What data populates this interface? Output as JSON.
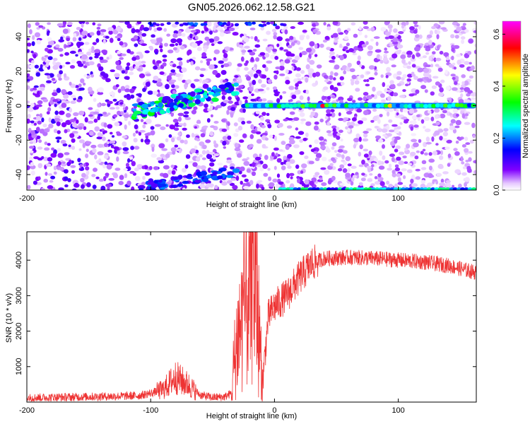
{
  "figure_title": "GN05.2026.062.12.58.G21",
  "chart_data": [
    {
      "type": "heatmap",
      "title": "GN05.2026.062.12.58.G21",
      "xlabel": "Height of straight line (km)",
      "ylabel": "Frequency (Hz)",
      "xlim": [
        -200,
        163
      ],
      "ylim": [
        -49,
        49
      ],
      "xticks": [
        -200,
        -100,
        0,
        100
      ],
      "yticks": [
        -40,
        -20,
        0,
        20,
        40
      ],
      "colorbar": {
        "label": "Normalized spectral amplitude",
        "range": [
          0.0,
          0.65
        ],
        "ticks": [
          0.0,
          0.2,
          0.4,
          0.6
        ],
        "colormap": [
          "#ffffff",
          "#8000ff",
          "#0000ff",
          "#00ffff",
          "#00ff00",
          "#ffff00",
          "#ff0000",
          "#ff00ff"
        ]
      },
      "features": [
        {
          "name": "dc-line",
          "x_range": [
            -25,
            163
          ],
          "frequency": 0,
          "amplitude": 0.3
        },
        {
          "name": "blob-cluster",
          "x_range": [
            -115,
            -30
          ],
          "frequency": 5,
          "amplitude": 0.25
        },
        {
          "name": "lower-edge-line",
          "x_range": [
            5,
            163
          ],
          "frequency": -48,
          "amplitude": 0.2
        }
      ]
    },
    {
      "type": "line",
      "xlabel": "Height of straight line (km)",
      "ylabel": "SNR (10 * v/v)",
      "xlim": [
        -200,
        163
      ],
      "ylim": [
        0,
        4800
      ],
      "xticks": [
        -200,
        -100,
        0,
        100
      ],
      "yticks": [
        1000,
        2000,
        3000,
        4000
      ],
      "line_color": "#ee3333",
      "series": [
        {
          "name": "SNR",
          "x": [
            -200,
            -150,
            -110,
            -100,
            -90,
            -80,
            -70,
            -60,
            -50,
            -40,
            -35,
            -30,
            -25,
            -20,
            -15,
            -10,
            -5,
            0,
            10,
            20,
            30,
            40,
            60,
            80,
            100,
            120,
            140,
            163
          ],
          "y": [
            120,
            150,
            180,
            250,
            350,
            700,
            500,
            200,
            130,
            150,
            250,
            1800,
            2500,
            3000,
            3500,
            400,
            2400,
            2700,
            3000,
            3500,
            3900,
            4050,
            4080,
            4050,
            4000,
            3950,
            3850,
            3650
          ]
        }
      ]
    }
  ]
}
